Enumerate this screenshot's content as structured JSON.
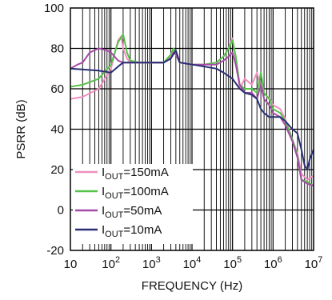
{
  "chart_data": {
    "type": "line",
    "title": "",
    "xlabel": "FREQUENCY (Hz)",
    "ylabel": "PSRR (dB)",
    "x_scale": "log",
    "xlim": [
      10,
      10000000
    ],
    "ylim": [
      -20,
      100
    ],
    "grid": true,
    "legend_position": "bottom-left",
    "x_tick_labels": [
      {
        "base": "10",
        "exp": ""
      },
      {
        "base": "10",
        "exp": "2"
      },
      {
        "base": "10",
        "exp": "3"
      },
      {
        "base": "10",
        "exp": "4"
      },
      {
        "base": "10",
        "exp": "5"
      },
      {
        "base": "10",
        "exp": "6"
      },
      {
        "base": "10",
        "exp": "7"
      }
    ],
    "y_tick_labels": [
      "-20",
      "0",
      "20",
      "40",
      "60",
      "80",
      "100"
    ],
    "series": [
      {
        "name": "I_OUT=150mA",
        "legend_parts": {
          "main": "I",
          "sub": "OUT",
          "rest": "=150mA"
        },
        "color": "#f08fc0",
        "x": [
          10,
          20,
          50,
          100,
          150,
          180,
          200,
          250,
          300,
          500,
          1000,
          2000,
          3000,
          3500,
          4000,
          5000,
          10000,
          20000,
          40000,
          60000,
          80000,
          100000,
          120000,
          150000,
          200000,
          300000,
          400000,
          500000,
          600000,
          800000,
          1000000,
          1500000,
          2000000,
          3000000,
          4000000,
          5000000,
          7000000,
          10000000
        ],
        "y": [
          55,
          56,
          60,
          70,
          84,
          86,
          80,
          75,
          73,
          73,
          73,
          73,
          76,
          79,
          78,
          73,
          72,
          72,
          73,
          76,
          80,
          85,
          75,
          60,
          65,
          62,
          68,
          60,
          58,
          55,
          52,
          50,
          45,
          35,
          28,
          18,
          15,
          17
        ]
      },
      {
        "name": "I_OUT=100mA",
        "legend_parts": {
          "main": "I",
          "sub": "OUT",
          "rest": "=100mA"
        },
        "color": "#55c24a",
        "x": [
          10,
          20,
          50,
          100,
          150,
          200,
          250,
          300,
          500,
          1000,
          2000,
          3000,
          3500,
          4000,
          5000,
          10000,
          20000,
          40000,
          60000,
          80000,
          100000,
          120000,
          150000,
          200000,
          300000,
          400000,
          500000,
          600000,
          800000,
          1000000,
          1500000,
          2000000,
          3000000,
          4000000,
          5000000,
          7000000,
          10000000
        ],
        "y": [
          61,
          62,
          65,
          72,
          83,
          87,
          78,
          74,
          73,
          73,
          73,
          77,
          80,
          78,
          73,
          72,
          72,
          73,
          76,
          80,
          84,
          76,
          62,
          60,
          60,
          58,
          68,
          58,
          55,
          50,
          48,
          44,
          35,
          27,
          15,
          14,
          12
        ]
      },
      {
        "name": "I_OUT=50mA",
        "legend_parts": {
          "main": "I",
          "sub": "OUT",
          "rest": "=50mA"
        },
        "color": "#a64aa9",
        "x": [
          10,
          15,
          20,
          30,
          50,
          80,
          100,
          150,
          200,
          300,
          500,
          1000,
          2000,
          3000,
          3500,
          4000,
          5000,
          10000,
          20000,
          40000,
          60000,
          80000,
          100000,
          120000,
          150000,
          200000,
          300000,
          400000,
          500000,
          600000,
          800000,
          1000000,
          1500000,
          2000000,
          3000000,
          4000000,
          5000000,
          7000000,
          10000000
        ],
        "y": [
          70,
          72,
          73,
          78,
          80,
          79,
          78,
          74,
          73,
          73,
          73,
          73,
          73,
          75,
          78,
          77,
          73,
          72,
          72,
          72,
          74,
          76,
          78,
          72,
          62,
          58,
          58,
          55,
          62,
          55,
          52,
          48,
          46,
          42,
          34,
          26,
          15,
          13,
          12
        ]
      },
      {
        "name": "I_OUT=10mA",
        "legend_parts": {
          "main": "I",
          "sub": "OUT",
          "rest": "=10mA"
        },
        "color": "#2a2e74",
        "x": [
          10,
          50,
          100,
          150,
          200,
          300,
          500,
          1000,
          2000,
          3000,
          4000,
          5000,
          10000,
          20000,
          40000,
          60000,
          100000,
          150000,
          200000,
          300000,
          400000,
          500000,
          600000,
          800000,
          1000000,
          1500000,
          2000000,
          3000000,
          4000000,
          5000000,
          6000000,
          7000000,
          8000000,
          10000000
        ],
        "y": [
          70,
          69,
          68,
          71,
          73,
          73,
          73,
          73,
          73,
          75,
          79,
          73,
          72,
          71,
          70,
          68,
          65,
          60,
          58,
          57,
          55,
          50,
          48,
          46,
          46,
          46,
          44,
          40,
          38,
          30,
          22,
          20,
          25,
          30
        ]
      }
    ]
  }
}
